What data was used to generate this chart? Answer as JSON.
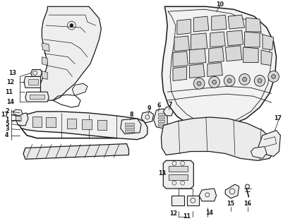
{
  "bg_color": "#ffffff",
  "line_color": "#1a1a1a",
  "label_color": "#111111",
  "fig_width": 4.02,
  "fig_height": 3.13,
  "dpi": 100,
  "gray_fill": "#d8d8d8",
  "light_fill": "#eeeeee",
  "mid_fill": "#c8c8c8"
}
